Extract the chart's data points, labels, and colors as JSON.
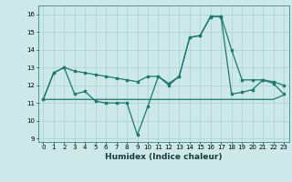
{
  "xlabel": "Humidex (Indice chaleur)",
  "bg_color": "#cce8e8",
  "grid_color": "#aacfcf",
  "line_color": "#1a7a6e",
  "xlim": [
    -0.5,
    23.5
  ],
  "ylim": [
    8.8,
    16.5
  ],
  "yticks": [
    9,
    10,
    11,
    12,
    13,
    14,
    15,
    16
  ],
  "xticks": [
    0,
    1,
    2,
    3,
    4,
    5,
    6,
    7,
    8,
    9,
    10,
    11,
    12,
    13,
    14,
    15,
    16,
    17,
    18,
    19,
    20,
    21,
    22,
    23
  ],
  "line1_x": [
    0,
    1,
    2,
    3,
    4,
    5,
    6,
    7,
    8,
    9,
    10,
    11,
    12,
    13,
    14,
    15,
    16,
    17,
    18,
    19,
    20,
    21,
    22,
    23
  ],
  "line1_y": [
    11.2,
    12.7,
    13.0,
    12.8,
    12.7,
    12.6,
    12.5,
    12.4,
    12.3,
    12.2,
    12.5,
    12.5,
    12.1,
    12.5,
    14.7,
    14.8,
    15.85,
    15.9,
    14.0,
    12.3,
    12.3,
    12.3,
    12.2,
    12.0
  ],
  "line2_x": [
    0,
    1,
    2,
    3,
    4,
    5,
    6,
    7,
    8,
    9,
    10,
    11,
    12,
    13,
    14,
    15,
    16,
    17,
    18,
    19,
    20,
    21,
    22,
    23
  ],
  "line2_y": [
    11.2,
    12.7,
    13.0,
    11.5,
    11.65,
    11.1,
    11.0,
    11.0,
    11.0,
    9.2,
    10.8,
    12.5,
    12.0,
    12.5,
    14.7,
    14.8,
    15.9,
    15.85,
    11.5,
    11.6,
    11.75,
    12.3,
    12.1,
    11.5
  ],
  "line3_x": [
    0,
    1,
    2,
    3,
    4,
    5,
    6,
    7,
    8,
    9,
    10,
    11,
    12,
    13,
    14,
    15,
    16,
    17,
    18,
    19,
    20,
    21,
    22,
    23
  ],
  "line3_y": [
    11.2,
    11.2,
    11.2,
    11.2,
    11.2,
    11.2,
    11.2,
    11.2,
    11.2,
    11.2,
    11.2,
    11.2,
    11.2,
    11.2,
    11.2,
    11.2,
    11.2,
    11.2,
    11.2,
    11.2,
    11.2,
    11.2,
    11.2,
    11.45
  ]
}
